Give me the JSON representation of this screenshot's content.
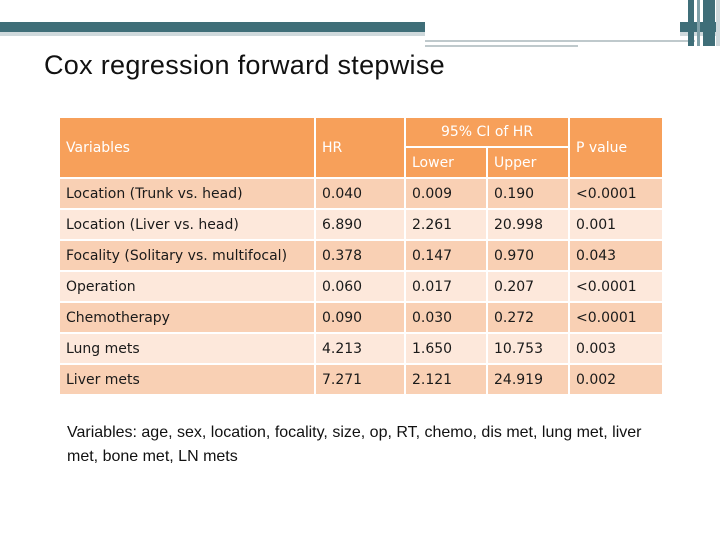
{
  "slide": {
    "title": "Cox regression forward stepwise",
    "footnote": "Variables: age, sex, location, focality, size, op, RT, chemo, dis met, lung met, liver met, bone met, LN mets"
  },
  "table": {
    "headers": {
      "variables": "Variables",
      "hr": "HR",
      "ci": "95% CI of HR",
      "lower": "Lower",
      "upper": "Upper",
      "p": "P value"
    },
    "rows": [
      {
        "variable": "Location (Trunk vs. head)",
        "hr": "0.040",
        "lower": "0.009",
        "upper": "0.190",
        "p": "<0.0001"
      },
      {
        "variable": "Location (Liver vs. head)",
        "hr": "6.890",
        "lower": "2.261",
        "upper": "20.998",
        "p": "0.001"
      },
      {
        "variable": "Focality (Solitary vs. multifocal)",
        "hr": "0.378",
        "lower": "0.147",
        "upper": "0.970",
        "p": "0.043"
      },
      {
        "variable": "Operation",
        "hr": "0.060",
        "lower": "0.017",
        "upper": "0.207",
        "p": "<0.0001"
      },
      {
        "variable": "Chemotherapy",
        "hr": "0.090",
        "lower": "0.030",
        "upper": "0.272",
        "p": "<0.0001"
      },
      {
        "variable": "Lung mets",
        "hr": "4.213",
        "lower": "1.650",
        "upper": "10.753",
        "p": "0.003"
      },
      {
        "variable": "Liver mets",
        "hr": "7.271",
        "lower": "2.121",
        "upper": "24.919",
        "p": "0.002"
      }
    ]
  }
}
